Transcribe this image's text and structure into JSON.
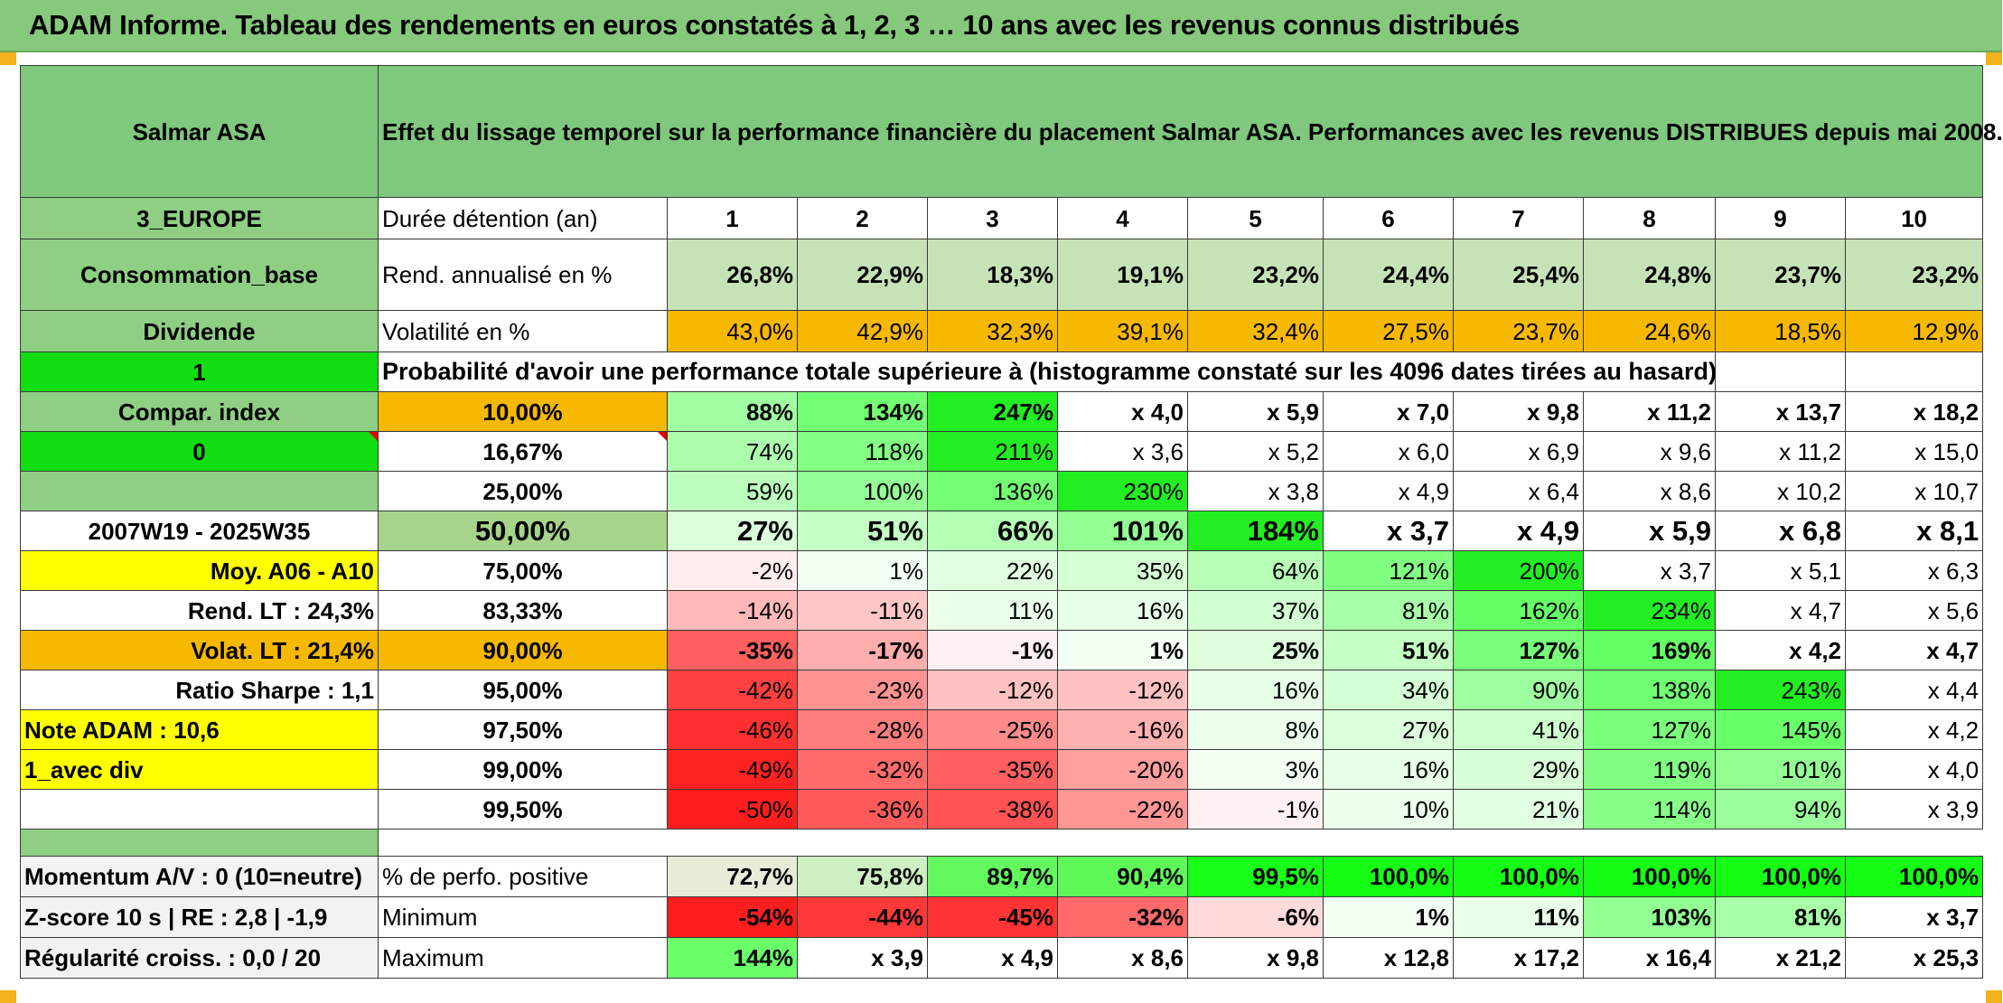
{
  "title": "ADAM Informe. Tableau des rendements en euros constatés à 1, 2, 3 … 10 ans avec les revenus connus distribués",
  "fund_name": "Salmar ASA",
  "description": "Effet du lissage temporel sur la performance financière du placement Salmar ASA. Performances avec les revenus DISTRIBUES depuis mai 2008.",
  "side": {
    "region": "3_EUROPE",
    "sector": "Consommation_base",
    "dividend_label": "Dividende",
    "dividend_value": "1",
    "compar_label": "Compar. index",
    "compar_value": "0",
    "period": "2007W19 - 2025W35",
    "moy": "Moy. A06 - A10",
    "rend_lt": "Rend. LT :   24,3%",
    "volat_lt": "Volat. LT :   21,4%",
    "sharpe": "Ratio Sharpe :    1,1",
    "note": "Note ADAM : 10,6",
    "avec_div": "1_avec div"
  },
  "header_row": {
    "label": "Durée détention (an)",
    "years": [
      "1",
      "2",
      "3",
      "4",
      "5",
      "6",
      "7",
      "8",
      "9",
      "10"
    ]
  },
  "rend_row": {
    "label": "Rend. annualisé en %",
    "values": [
      "26,8%",
      "22,9%",
      "18,3%",
      "19,1%",
      "23,2%",
      "24,4%",
      "25,4%",
      "24,8%",
      "23,7%",
      "23,2%"
    ]
  },
  "vol_row": {
    "label": "Volatilité en %",
    "values": [
      "43,0%",
      "42,9%",
      "32,3%",
      "39,1%",
      "32,4%",
      "27,5%",
      "23,7%",
      "24,6%",
      "18,5%",
      "12,9%"
    ]
  },
  "prob_title": "Probabilité d'avoir une performance totale supérieure à (histogramme constaté sur les 4096 dates tirées au hasard)",
  "prob_rows": [
    {
      "pct": "10,00%",
      "values": [
        "88%",
        "134%",
        "247%",
        "x 4,0",
        "x 5,9",
        "x 7,0",
        "x 9,8",
        "x 11,2",
        "x 13,7",
        "x 18,2"
      ]
    },
    {
      "pct": "16,67%",
      "values": [
        "74%",
        "118%",
        "211%",
        "x 3,6",
        "x 5,2",
        "x 6,0",
        "x 6,9",
        "x 9,6",
        "x 11,2",
        "x 15,0"
      ]
    },
    {
      "pct": "25,00%",
      "values": [
        "59%",
        "100%",
        "136%",
        "230%",
        "x 3,8",
        "x 4,9",
        "x 6,4",
        "x 8,6",
        "x 10,2",
        "x 10,7"
      ]
    },
    {
      "pct": "50,00%",
      "values": [
        "27%",
        "51%",
        "66%",
        "101%",
        "184%",
        "x 3,7",
        "x 4,9",
        "x 5,9",
        "x 6,8",
        "x 8,1"
      ]
    },
    {
      "pct": "75,00%",
      "values": [
        "-2%",
        "1%",
        "22%",
        "35%",
        "64%",
        "121%",
        "200%",
        "x 3,7",
        "x 5,1",
        "x 6,3"
      ]
    },
    {
      "pct": "83,33%",
      "values": [
        "-14%",
        "-11%",
        "11%",
        "16%",
        "37%",
        "81%",
        "162%",
        "234%",
        "x 4,7",
        "x 5,6"
      ]
    },
    {
      "pct": "90,00%",
      "values": [
        "-35%",
        "-17%",
        "-1%",
        "1%",
        "25%",
        "51%",
        "127%",
        "169%",
        "x 4,2",
        "x 4,7"
      ]
    },
    {
      "pct": "95,00%",
      "values": [
        "-42%",
        "-23%",
        "-12%",
        "-12%",
        "16%",
        "34%",
        "90%",
        "138%",
        "243%",
        "x 4,4"
      ]
    },
    {
      "pct": "97,50%",
      "values": [
        "-46%",
        "-28%",
        "-25%",
        "-16%",
        "8%",
        "27%",
        "41%",
        "127%",
        "145%",
        "x 4,2"
      ]
    },
    {
      "pct": "99,00%",
      "values": [
        "-49%",
        "-32%",
        "-35%",
        "-20%",
        "3%",
        "16%",
        "29%",
        "119%",
        "101%",
        "x 4,0"
      ]
    },
    {
      "pct": "99,50%",
      "values": [
        "-50%",
        "-36%",
        "-38%",
        "-22%",
        "-1%",
        "10%",
        "21%",
        "114%",
        "94%",
        "x 3,9"
      ]
    }
  ],
  "bottom": {
    "momentum": "Momentum A/V : 0 (10=neutre)",
    "zscore": "Z-score 10 s | RE : 2,8 | -1,9",
    "regularite": "Régularité croiss. : 0,0 / 20",
    "pos_label": "% de perfo. positive",
    "pos_values": [
      "72,7%",
      "75,8%",
      "89,7%",
      "90,4%",
      "99,5%",
      "100,0%",
      "100,0%",
      "100,0%",
      "100,0%",
      "100,0%"
    ],
    "min_label": "Minimum",
    "min_values": [
      "-54%",
      "-44%",
      "-45%",
      "-32%",
      "-6%",
      "1%",
      "11%",
      "103%",
      "81%",
      "x 3,7"
    ],
    "max_label": "Maximum",
    "max_values": [
      "144%",
      "x 3,9",
      "x 4,9",
      "x 8,6",
      "x 9,8",
      "x 12,8",
      "x 17,2",
      "x 16,4",
      "x 21,2",
      "x 25,3"
    ]
  },
  "colors": {
    "header_green": "#7fc87d",
    "orange": "#f7b800",
    "bright_green": "#11dd11",
    "yellow": "#ffff00",
    "light_green": "#c6e3b8"
  }
}
